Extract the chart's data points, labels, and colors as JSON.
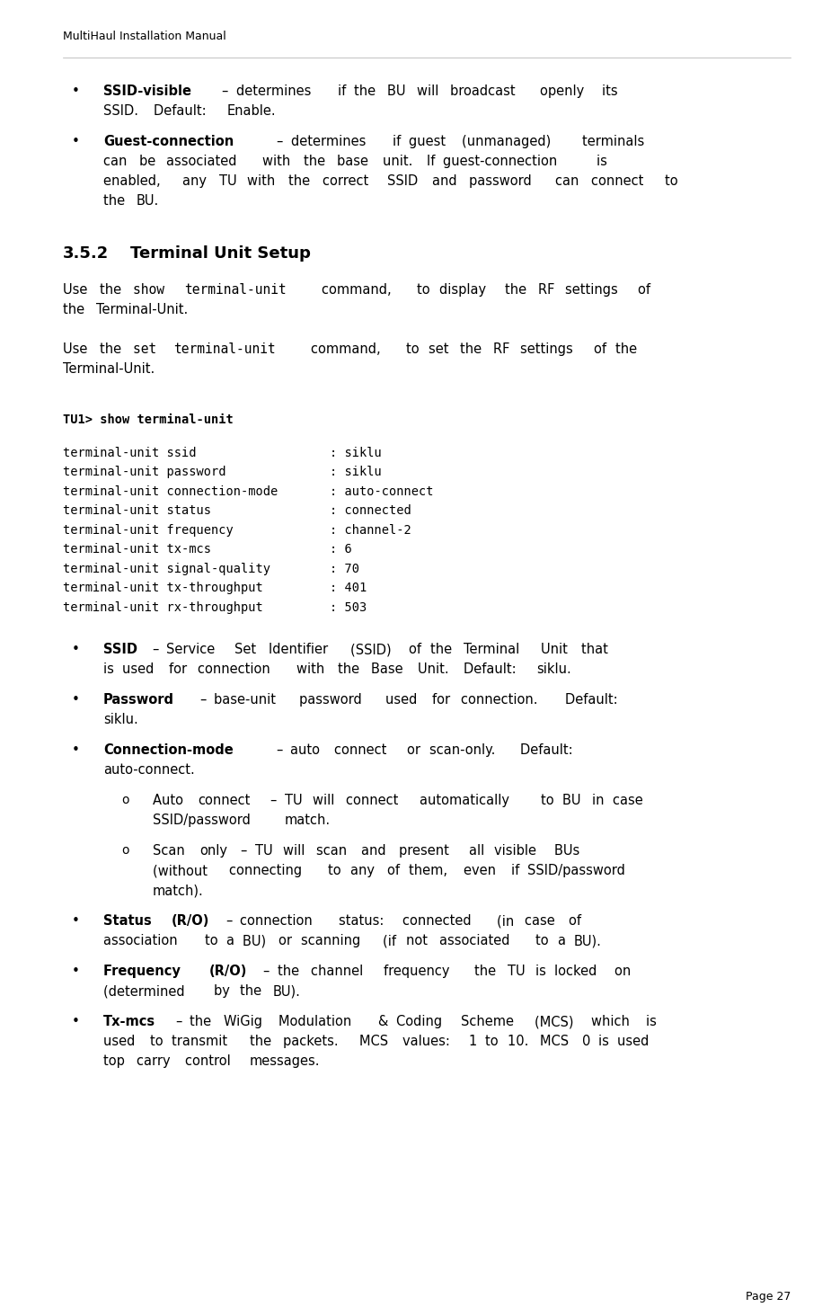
{
  "page_header": "MultiHaul Installation Manual",
  "page_number": "Page 27",
  "background_color": "#ffffff",
  "text_color": "#000000",
  "section_title": "3.5.2    Terminal Unit Setup",
  "content_blocks": [
    {
      "type": "bullet",
      "indent": 1,
      "parts": [
        {
          "text": "SSID-visible",
          "bold": true
        },
        {
          "text": " – determines if the BU will broadcast openly its SSID. Default: Enable.",
          "bold": false
        }
      ]
    },
    {
      "type": "bullet",
      "indent": 1,
      "parts": [
        {
          "text": "Guest-connection",
          "bold": true
        },
        {
          "text": " – determines if guest (unmanaged) terminals can be associated with the base unit. If guest-connection is enabled, any TU with the correct SSID and password can connect to the BU.",
          "bold": false
        }
      ]
    },
    {
      "type": "section_heading",
      "text": "3.5.2    Terminal Unit Setup"
    },
    {
      "type": "paragraph",
      "parts": [
        {
          "text": "Use the ",
          "bold": false,
          "mono": false
        },
        {
          "text": "show terminal-unit",
          "bold": false,
          "mono": true
        },
        {
          "text": " command, to display the RF settings of the Terminal-Unit.",
          "bold": false,
          "mono": false
        }
      ]
    },
    {
      "type": "paragraph",
      "parts": [
        {
          "text": "Use the ",
          "bold": false,
          "mono": false
        },
        {
          "text": "set terminal-unit",
          "bold": false,
          "mono": true
        },
        {
          "text": " command, to set the RF settings of the Terminal-Unit.",
          "bold": false,
          "mono": false
        }
      ]
    },
    {
      "type": "code_block",
      "lines": [
        "TU1> show terminal-unit",
        "",
        "terminal-unit ssid                  : siklu",
        "terminal-unit password              : siklu",
        "terminal-unit connection-mode       : auto-connect",
        "terminal-unit status                : connected",
        "terminal-unit frequency             : channel-2",
        "terminal-unit tx-mcs                : 6",
        "terminal-unit signal-quality        : 70",
        "terminal-unit tx-throughput         : 401",
        "terminal-unit rx-throughput         : 503"
      ]
    },
    {
      "type": "bullet",
      "indent": 1,
      "parts": [
        {
          "text": "SSID",
          "bold": true
        },
        {
          "text": " – Service Set Identifier (SSID) of the Terminal Unit that is used for connection with the Base Unit. Default: siklu.",
          "bold": false
        }
      ]
    },
    {
      "type": "bullet",
      "indent": 1,
      "parts": [
        {
          "text": "Password",
          "bold": true
        },
        {
          "text": " – base-unit password used for connection. Default: siklu.",
          "bold": false
        }
      ]
    },
    {
      "type": "bullet",
      "indent": 1,
      "parts": [
        {
          "text": "Connection-mode",
          "bold": true
        },
        {
          "text": " – auto connect or scan-only. Default: auto-connect.",
          "bold": false
        }
      ]
    },
    {
      "type": "sub_bullet",
      "indent": 2,
      "parts": [
        {
          "text": "Auto connect",
          "bold": false
        },
        {
          "text": " – TU will connect automatically to BU in case SSID/password match.",
          "bold": false
        }
      ]
    },
    {
      "type": "sub_bullet",
      "indent": 2,
      "parts": [
        {
          "text": "Scan only",
          "bold": false
        },
        {
          "text": " – TU will scan and present all visible BUs (without connecting to any of them, even if SSID/password match).",
          "bold": false
        }
      ]
    },
    {
      "type": "bullet",
      "indent": 1,
      "parts": [
        {
          "text": "Status (R/O)",
          "bold": true
        },
        {
          "text": " – connection status: connected (in case of association to a BU) or scanning (if not associated to a BU).",
          "bold": false
        }
      ]
    },
    {
      "type": "bullet",
      "indent": 1,
      "parts": [
        {
          "text": "Frequency (R/O)",
          "bold": true
        },
        {
          "text": " – the channel frequency the TU is locked on (determined by the BU).",
          "bold": false
        }
      ]
    },
    {
      "type": "bullet",
      "indent": 1,
      "parts": [
        {
          "text": "Tx-mcs",
          "bold": true
        },
        {
          "text": " – the WiGig Modulation & Coding Scheme (MCS) which is used to transmit the packets. MCS values: 1 to 10. MCS 0 is used top carry control messages.",
          "bold": false
        }
      ]
    }
  ]
}
